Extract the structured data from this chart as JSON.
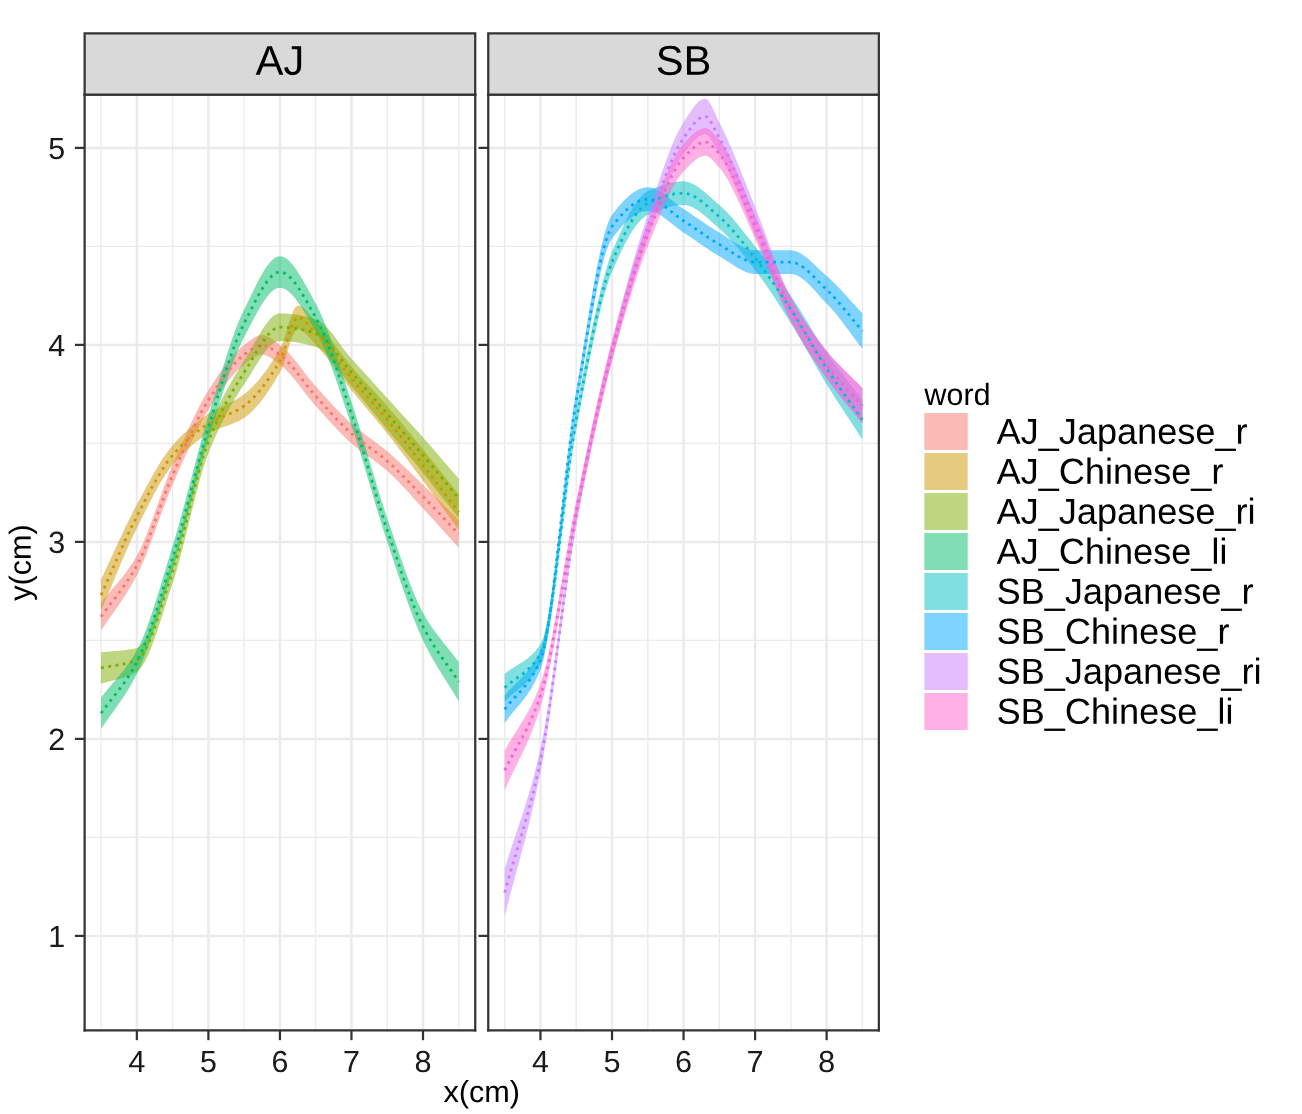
{
  "chart_data": [
    {
      "type": "line",
      "title": "AJ",
      "ylabel": "y(cm)",
      "xlabel": "x(cm)",
      "xlim": [
        3.27,
        8.73
      ],
      "ylim": [
        0.52,
        5.27
      ],
      "xticks": [
        4,
        5,
        6,
        7,
        8
      ],
      "yticks": [
        1,
        2,
        3,
        4,
        5
      ],
      "grid": true,
      "line_style": "dotted",
      "legend_title": "word",
      "legend": "right",
      "series": [
        {
          "name": "AJ_Japanese_r",
          "color": "#f8766d",
          "x": [
            3.5,
            4,
            4.5,
            5,
            5.5,
            5.75,
            6,
            6.5,
            7,
            7.5,
            8,
            8.5
          ],
          "values": [
            2.62,
            2.88,
            3.34,
            3.72,
            3.95,
            4.0,
            3.95,
            3.74,
            3.55,
            3.41,
            3.23,
            3.04
          ],
          "lower": [
            2.55,
            2.83,
            3.29,
            3.67,
            3.9,
            3.95,
            3.9,
            3.69,
            3.5,
            3.36,
            3.17,
            2.97
          ],
          "upper": [
            2.69,
            2.93,
            3.39,
            3.77,
            4.0,
            4.05,
            4.0,
            3.79,
            3.6,
            3.46,
            3.29,
            3.11
          ]
        },
        {
          "name": "AJ_Chinese_r",
          "color": "#cd9600",
          "x": [
            3.5,
            4,
            4.5,
            5,
            5.5,
            6,
            6.25,
            6.5,
            7,
            7.5,
            8,
            8.5
          ],
          "values": [
            2.73,
            3.13,
            3.44,
            3.6,
            3.69,
            3.92,
            4.14,
            4.06,
            3.83,
            3.62,
            3.39,
            3.15
          ],
          "lower": [
            2.65,
            3.07,
            3.39,
            3.55,
            3.63,
            3.86,
            4.08,
            4.0,
            3.77,
            3.55,
            3.31,
            3.06
          ],
          "upper": [
            2.81,
            3.19,
            3.49,
            3.65,
            3.75,
            3.98,
            4.2,
            4.12,
            3.89,
            3.69,
            3.47,
            3.24
          ]
        },
        {
          "name": "AJ_Japanese_ri",
          "color": "#7cae00",
          "x": [
            3.5,
            4,
            4.5,
            5,
            5.5,
            6,
            6.5,
            7,
            7.5,
            8,
            8.5
          ],
          "values": [
            2.36,
            2.4,
            2.85,
            3.51,
            3.86,
            4.09,
            4.06,
            3.86,
            3.65,
            3.44,
            3.22
          ],
          "lower": [
            2.28,
            2.34,
            2.79,
            3.45,
            3.8,
            4.02,
            3.99,
            3.79,
            3.57,
            3.35,
            3.12
          ],
          "upper": [
            2.44,
            2.46,
            2.91,
            3.57,
            3.92,
            4.16,
            4.13,
            3.93,
            3.73,
            3.53,
            3.32
          ]
        },
        {
          "name": "AJ_Chinese_li",
          "color": "#00be67",
          "x": [
            3.5,
            4,
            4.5,
            5,
            5.5,
            6,
            6.5,
            7,
            7.5,
            8,
            8.5
          ],
          "values": [
            2.13,
            2.39,
            2.92,
            3.58,
            4.11,
            4.37,
            4.14,
            3.65,
            3.06,
            2.57,
            2.29
          ],
          "lower": [
            2.05,
            2.33,
            2.86,
            3.52,
            4.04,
            4.29,
            4.07,
            3.59,
            3.0,
            2.5,
            2.19
          ],
          "upper": [
            2.21,
            2.45,
            2.98,
            3.64,
            4.18,
            4.45,
            4.21,
            3.71,
            3.12,
            2.64,
            2.39
          ]
        }
      ]
    },
    {
      "type": "line",
      "title": "SB",
      "xlim": [
        3.27,
        8.73
      ],
      "ylim": [
        0.52,
        5.27
      ],
      "xticks": [
        4,
        5,
        6,
        7,
        8
      ],
      "yticks": [
        1,
        2,
        3,
        4,
        5
      ],
      "grid": true,
      "line_style": "dotted",
      "tick_labels": "x",
      "legend": "right",
      "series": [
        {
          "name": "SB_Japanese_r",
          "color": "#00bfc4",
          "x": [
            3.5,
            4,
            4.5,
            5,
            5.5,
            6,
            6.5,
            7,
            7.5,
            8,
            8.5
          ],
          "values": [
            2.26,
            2.43,
            3.62,
            4.42,
            4.72,
            4.77,
            4.65,
            4.44,
            4.18,
            3.88,
            3.62
          ],
          "lower": [
            2.19,
            2.38,
            3.57,
            4.37,
            4.66,
            4.71,
            4.59,
            4.38,
            4.11,
            3.8,
            3.52
          ],
          "upper": [
            2.33,
            2.48,
            3.67,
            4.47,
            4.78,
            4.83,
            4.71,
            4.5,
            4.25,
            3.96,
            3.72
          ]
        },
        {
          "name": "SB_Chinese_r",
          "color": "#00a9ff",
          "x": [
            3.5,
            4,
            4.5,
            5,
            5.5,
            6,
            6.5,
            7,
            7.5,
            8,
            8.5
          ],
          "values": [
            2.15,
            2.4,
            3.72,
            4.6,
            4.74,
            4.63,
            4.51,
            4.42,
            4.42,
            4.28,
            4.07
          ],
          "lower": [
            2.08,
            2.35,
            3.67,
            4.54,
            4.68,
            4.57,
            4.45,
            4.36,
            4.36,
            4.21,
            3.98
          ],
          "upper": [
            2.22,
            2.45,
            3.77,
            4.66,
            4.8,
            4.69,
            4.57,
            4.48,
            4.48,
            4.35,
            4.16
          ]
        },
        {
          "name": "SB_Japanese_ri",
          "color": "#c77cff",
          "x": [
            3.5,
            4,
            4.5,
            5,
            5.5,
            6,
            6.3,
            6.5,
            7,
            7.5,
            8,
            8.5
          ],
          "values": [
            1.22,
            1.89,
            3.13,
            3.97,
            4.6,
            5.05,
            5.16,
            5.05,
            4.63,
            4.18,
            3.9,
            3.69
          ],
          "lower": [
            1.1,
            1.83,
            3.08,
            3.92,
            4.54,
            4.97,
            5.07,
            4.97,
            4.56,
            4.12,
            3.83,
            3.6
          ],
          "upper": [
            1.34,
            1.95,
            3.18,
            4.02,
            4.66,
            5.13,
            5.25,
            5.13,
            4.7,
            4.24,
            3.97,
            3.78
          ]
        },
        {
          "name": "SB_Chinese_li",
          "color": "#ff61cc",
          "x": [
            3.5,
            4,
            4.5,
            5,
            5.5,
            6,
            6.3,
            6.5,
            7,
            7.5,
            8,
            8.5
          ],
          "values": [
            1.84,
            2.22,
            3.16,
            3.97,
            4.56,
            4.95,
            5.03,
            4.97,
            4.6,
            4.18,
            3.9,
            3.69
          ],
          "lower": [
            1.74,
            2.16,
            3.11,
            3.92,
            4.5,
            4.88,
            4.96,
            4.9,
            4.54,
            4.12,
            3.83,
            3.6
          ],
          "upper": [
            1.94,
            2.28,
            3.21,
            4.02,
            4.62,
            5.02,
            5.1,
            5.04,
            4.66,
            4.24,
            3.97,
            3.78
          ]
        }
      ]
    }
  ]
}
